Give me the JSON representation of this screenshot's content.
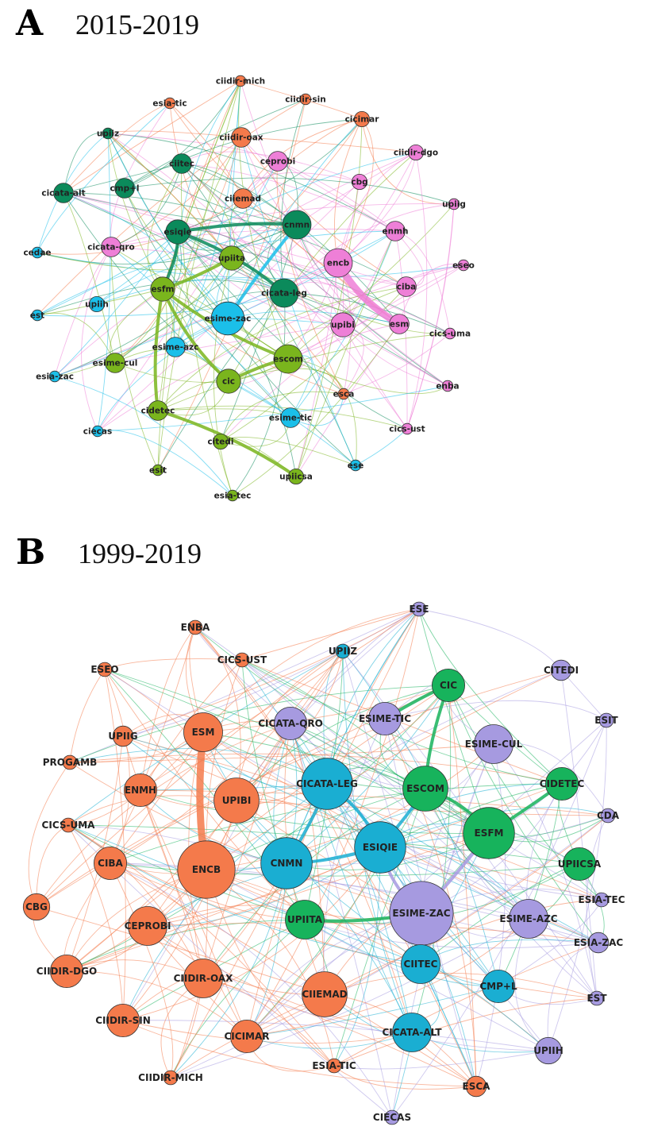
{
  "colors": {
    "green": "#0b8a5b",
    "lime": "#7ab51d",
    "cyan": "#1bbfe9",
    "pink": "#ee7fd7",
    "orange": "#f47a4b",
    "teal": "#1aaed2",
    "purple": "#a69ae0",
    "dkgreen": "#17b35c",
    "coral": "#f47a4b"
  },
  "panels": [
    {
      "letter": "A",
      "years": "2015-2019",
      "nodes": [
        {
          "id": "ciidir-mich",
          "label": "ciidir-mich",
          "color": "orange",
          "size": 1
        },
        {
          "id": "esia-tic",
          "label": "esia-tic",
          "color": "orange",
          "size": 1
        },
        {
          "id": "ciidir-sin",
          "label": "ciidir-sin",
          "color": "orange",
          "size": 1
        },
        {
          "id": "cicimar",
          "label": "cicimar",
          "color": "orange",
          "size": 2
        },
        {
          "id": "upiiz",
          "label": "upiiz",
          "color": "green",
          "size": 1
        },
        {
          "id": "ciidir-oax",
          "label": "ciidir-oax",
          "color": "orange",
          "size": 3
        },
        {
          "id": "ciidir-dgo",
          "label": "ciidir-dgo",
          "color": "pink",
          "size": 2
        },
        {
          "id": "ciitec",
          "label": "ciitec",
          "color": "green",
          "size": 3
        },
        {
          "id": "ceprobi",
          "label": "ceprobi",
          "color": "pink",
          "size": 3
        },
        {
          "id": "cbg",
          "label": "cbg",
          "color": "pink",
          "size": 2
        },
        {
          "id": "cmp+l",
          "label": "cmp+l",
          "color": "green",
          "size": 3
        },
        {
          "id": "cicata-alt",
          "label": "cicata-alt",
          "color": "green",
          "size": 3
        },
        {
          "id": "ciiemad",
          "label": "ciiemad",
          "color": "orange",
          "size": 3
        },
        {
          "id": "upiig",
          "label": "upiig",
          "color": "pink",
          "size": 1
        },
        {
          "id": "esiqie",
          "label": "esiqie",
          "color": "green",
          "size": 4
        },
        {
          "id": "cnmn",
          "label": "cnmn",
          "color": "green",
          "size": 5
        },
        {
          "id": "enmh",
          "label": "enmh",
          "color": "pink",
          "size": 3
        },
        {
          "id": "cedae",
          "label": "cedae",
          "color": "cyan",
          "size": 1
        },
        {
          "id": "cicata-qro",
          "label": "cicata-qro",
          "color": "pink",
          "size": 3
        },
        {
          "id": "upiita",
          "label": "upiita",
          "color": "lime",
          "size": 4
        },
        {
          "id": "encb",
          "label": "encb",
          "color": "pink",
          "size": 5
        },
        {
          "id": "eseo",
          "label": "eseo",
          "color": "pink",
          "size": 1
        },
        {
          "id": "ciba",
          "label": "ciba",
          "color": "pink",
          "size": 3
        },
        {
          "id": "esfm",
          "label": "esfm",
          "color": "lime",
          "size": 4
        },
        {
          "id": "cicata-leg",
          "label": "cicata-leg",
          "color": "green",
          "size": 5
        },
        {
          "id": "upiih",
          "label": "upiih",
          "color": "cyan",
          "size": 2
        },
        {
          "id": "est",
          "label": "est",
          "color": "cyan",
          "size": 1
        },
        {
          "id": "esime-zac",
          "label": "esime-zac",
          "color": "cyan",
          "size": 6
        },
        {
          "id": "upibi",
          "label": "upibi",
          "color": "pink",
          "size": 4
        },
        {
          "id": "cics-uma",
          "label": "cics-uma",
          "color": "pink",
          "size": 1
        },
        {
          "id": "esm",
          "label": "esm",
          "color": "pink",
          "size": 3
        },
        {
          "id": "esime-azc",
          "label": "esime-azc",
          "color": "cyan",
          "size": 3
        },
        {
          "id": "esime-cul",
          "label": "esime-cul",
          "color": "lime",
          "size": 3
        },
        {
          "id": "escom",
          "label": "escom",
          "color": "lime",
          "size": 5
        },
        {
          "id": "esia-zac",
          "label": "esia-zac",
          "color": "cyan",
          "size": 1
        },
        {
          "id": "cic",
          "label": "cic",
          "color": "lime",
          "size": 4
        },
        {
          "id": "enba",
          "label": "enba",
          "color": "pink",
          "size": 1
        },
        {
          "id": "esca",
          "label": "esca",
          "color": "orange",
          "size": 1
        },
        {
          "id": "cidetec",
          "label": "cidetec",
          "color": "lime",
          "size": 3
        },
        {
          "id": "esime-tic",
          "label": "esime-tic",
          "color": "cyan",
          "size": 3
        },
        {
          "id": "ciecas",
          "label": "ciecas",
          "color": "cyan",
          "size": 1
        },
        {
          "id": "citedi",
          "label": "citedi",
          "color": "lime",
          "size": 2
        },
        {
          "id": "cics-ust",
          "label": "cics-ust",
          "color": "pink",
          "size": 1
        },
        {
          "id": "ese",
          "label": "ese",
          "color": "cyan",
          "size": 1
        },
        {
          "id": "esit",
          "label": "esit",
          "color": "lime",
          "size": 1
        },
        {
          "id": "upiicsa",
          "label": "upiicsa",
          "color": "lime",
          "size": 2
        },
        {
          "id": "esia-tec",
          "label": "esia-tec",
          "color": "lime",
          "size": 1
        }
      ],
      "thick_links": [
        [
          "esm",
          "encb"
        ],
        [
          "esiqie",
          "cnmn"
        ],
        [
          "esfm",
          "escom"
        ],
        [
          "cic",
          "escom"
        ],
        [
          "cic",
          "esfm"
        ],
        [
          "esiqie",
          "esfm"
        ],
        [
          "upiita",
          "esfm"
        ],
        [
          "cidetec",
          "upiicsa"
        ],
        [
          "esime-zac",
          "cnmn"
        ],
        [
          "esiqie",
          "cicata-leg"
        ],
        [
          "cidetec",
          "esfm"
        ]
      ]
    },
    {
      "letter": "B",
      "years": "1999-2019",
      "nodes": [
        {
          "id": "ENBA",
          "label": "ENBA",
          "color": "coral",
          "size": 1
        },
        {
          "id": "ESE",
          "label": "ESE",
          "color": "purple",
          "size": 1
        },
        {
          "id": "UPIIZ",
          "label": "UPIIZ",
          "color": "teal",
          "size": 1
        },
        {
          "id": "CICS-UST",
          "label": "CICS-UST",
          "color": "coral",
          "size": 1
        },
        {
          "id": "ESEO",
          "label": "ESEO",
          "color": "coral",
          "size": 1
        },
        {
          "id": "CIC",
          "label": "CIC",
          "color": "dkgreen",
          "size": 4
        },
        {
          "id": "CITEDI",
          "label": "CITEDI",
          "color": "purple",
          "size": 2
        },
        {
          "id": "ESIME-TIC",
          "label": "ESIME-TIC",
          "color": "purple",
          "size": 4
        },
        {
          "id": "ESM",
          "label": "ESM",
          "color": "coral",
          "size": 5
        },
        {
          "id": "CICATA-QRO",
          "label": "CICATA-QRO",
          "color": "purple",
          "size": 4
        },
        {
          "id": "ESIT",
          "label": "ESIT",
          "color": "purple",
          "size": 1
        },
        {
          "id": "UPIIG",
          "label": "UPIIG",
          "color": "coral",
          "size": 2
        },
        {
          "id": "ESIME-CUL",
          "label": "ESIME-CUL",
          "color": "purple",
          "size": 5
        },
        {
          "id": "PROGAMB",
          "label": "PROGAMB",
          "color": "coral",
          "size": 1
        },
        {
          "id": "CICATA-LEG",
          "label": "CICATA-LEG",
          "color": "teal",
          "size": 7
        },
        {
          "id": "ESCOM",
          "label": "ESCOM",
          "color": "dkgreen",
          "size": 6
        },
        {
          "id": "CIDETEC",
          "label": "CIDETEC",
          "color": "dkgreen",
          "size": 4
        },
        {
          "id": "ENMH",
          "label": "ENMH",
          "color": "coral",
          "size": 4
        },
        {
          "id": "UPIBI",
          "label": "UPIBI",
          "color": "coral",
          "size": 6
        },
        {
          "id": "CDA",
          "label": "CDA",
          "color": "purple",
          "size": 1
        },
        {
          "id": "CICS-UMA",
          "label": "CICS-UMA",
          "color": "coral",
          "size": 1
        },
        {
          "id": "ESFM",
          "label": "ESFM",
          "color": "dkgreen",
          "size": 7
        },
        {
          "id": "ESIQIE",
          "label": "ESIQIE",
          "color": "teal",
          "size": 7
        },
        {
          "id": "CNMN",
          "label": "CNMN",
          "color": "teal",
          "size": 7
        },
        {
          "id": "CIBA",
          "label": "CIBA",
          "color": "coral",
          "size": 4
        },
        {
          "id": "ENCB",
          "label": "ENCB",
          "color": "coral",
          "size": 8
        },
        {
          "id": "UPIICSA",
          "label": "UPIICSA",
          "color": "dkgreen",
          "size": 4
        },
        {
          "id": "CBG",
          "label": "CBG",
          "color": "coral",
          "size": 3
        },
        {
          "id": "ESIA-TEC",
          "label": "ESIA-TEC",
          "color": "purple",
          "size": 1
        },
        {
          "id": "ESIME-ZAC",
          "label": "ESIME-ZAC",
          "color": "purple",
          "size": 9
        },
        {
          "id": "UPIITA",
          "label": "UPIITA",
          "color": "dkgreen",
          "size": 5
        },
        {
          "id": "ESIME-AZC",
          "label": "ESIME-AZC",
          "color": "purple",
          "size": 5
        },
        {
          "id": "CEPROBI",
          "label": "CEPROBI",
          "color": "coral",
          "size": 5
        },
        {
          "id": "ESIA-ZAC",
          "label": "ESIA-ZAC",
          "color": "purple",
          "size": 2
        },
        {
          "id": "CIIDIR-DGO",
          "label": "CIIDIR-DGO",
          "color": "coral",
          "size": 4
        },
        {
          "id": "CIITEC",
          "label": "CIITEC",
          "color": "teal",
          "size": 5
        },
        {
          "id": "CIIDIR-OAX",
          "label": "CIIDIR-OAX",
          "color": "coral",
          "size": 5
        },
        {
          "id": "CMP+L",
          "label": "CMP+L",
          "color": "teal",
          "size": 4
        },
        {
          "id": "CIIEMAD",
          "label": "CIIEMAD",
          "color": "coral",
          "size": 6
        },
        {
          "id": "EST",
          "label": "EST",
          "color": "purple",
          "size": 1
        },
        {
          "id": "CIIDIR-SIN",
          "label": "CIIDIR-SIN",
          "color": "coral",
          "size": 4
        },
        {
          "id": "CICIMAR",
          "label": "CICIMAR",
          "color": "coral",
          "size": 4
        },
        {
          "id": "CICATA-ALT",
          "label": "CICATA-ALT",
          "color": "teal",
          "size": 5
        },
        {
          "id": "ESIA-TIC",
          "label": "ESIA-TIC",
          "color": "coral",
          "size": 1
        },
        {
          "id": "UPIIH",
          "label": "UPIIH",
          "color": "purple",
          "size": 3
        },
        {
          "id": "CIIDIR-MICH",
          "label": "CIIDIR-MICH",
          "color": "coral",
          "size": 1
        },
        {
          "id": "ESCA",
          "label": "ESCA",
          "color": "coral",
          "size": 2
        },
        {
          "id": "CIECAS",
          "label": "CIECAS",
          "color": "purple",
          "size": 1
        }
      ],
      "thick_links": [
        [
          "ESM",
          "ENCB"
        ],
        [
          "ESIME-ZAC",
          "ESFM"
        ],
        [
          "UPIITA",
          "ESIME-ZAC"
        ],
        [
          "ESIQIE",
          "ESCOM"
        ],
        [
          "CIC",
          "ESCOM"
        ],
        [
          "CIC",
          "ESIME-TIC"
        ],
        [
          "ESIQIE",
          "CNMN"
        ],
        [
          "ESIQIE",
          "CICATA-LEG"
        ],
        [
          "ESIME-ZAC",
          "ESIQIE"
        ],
        [
          "ESFM",
          "ESCOM"
        ],
        [
          "CIDETEC",
          "ESFM"
        ],
        [
          "CNMN",
          "CICATA-LEG"
        ]
      ]
    }
  ]
}
